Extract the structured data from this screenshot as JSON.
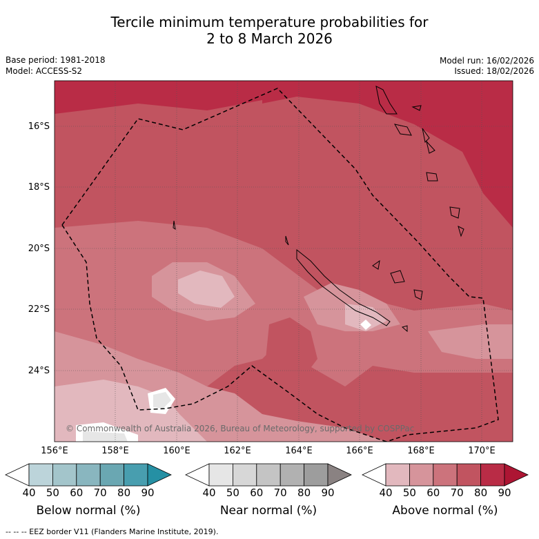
{
  "title": {
    "line1": "Tercile minimum temperature probabilities for",
    "line2": "2 to 8 March 2026"
  },
  "meta": {
    "base_period": "Base period: 1981-2018",
    "model": "Model: ACCESS-S2",
    "model_run": "Model run: 16/02/2026",
    "issued": "Issued: 18/02/2026"
  },
  "map": {
    "lat_ticks": [
      "16°S",
      "18°S",
      "20°S",
      "22°S",
      "24°S"
    ],
    "lon_ticks": [
      "156°E",
      "158°E",
      "160°E",
      "162°E",
      "164°E",
      "166°E",
      "168°E",
      "170°E"
    ],
    "copyright": "© Commonwealth of Australia 2026, Bureau of Meteorology, supported by COSPPac"
  },
  "colorbars": [
    {
      "label": "Below normal (%)",
      "ticks": [
        "40",
        "50",
        "60",
        "70",
        "80",
        "90"
      ],
      "colors": [
        "#ffffff",
        "#bcd4da",
        "#a3c5cb",
        "#89b6bf",
        "#6aa7b2",
        "#489eaf",
        "#2590a4"
      ]
    },
    {
      "label": "Near normal (%)",
      "ticks": [
        "40",
        "50",
        "60",
        "70",
        "80",
        "90"
      ],
      "colors": [
        "#ffffff",
        "#e6e6e6",
        "#d7d7d7",
        "#c4c4c4",
        "#b1b1b1",
        "#9d9d9d",
        "#8a8282"
      ]
    },
    {
      "label": "Above normal (%)",
      "ticks": [
        "40",
        "50",
        "60",
        "70",
        "80",
        "90"
      ],
      "colors": [
        "#ffffff",
        "#e2b8be",
        "#d6949b",
        "#cc737c",
        "#c15460",
        "#b92c46",
        "#ad1533"
      ]
    }
  ],
  "footer": "--  --  -- EEZ border V11 (Flanders Marine Institute, 2019)."
}
